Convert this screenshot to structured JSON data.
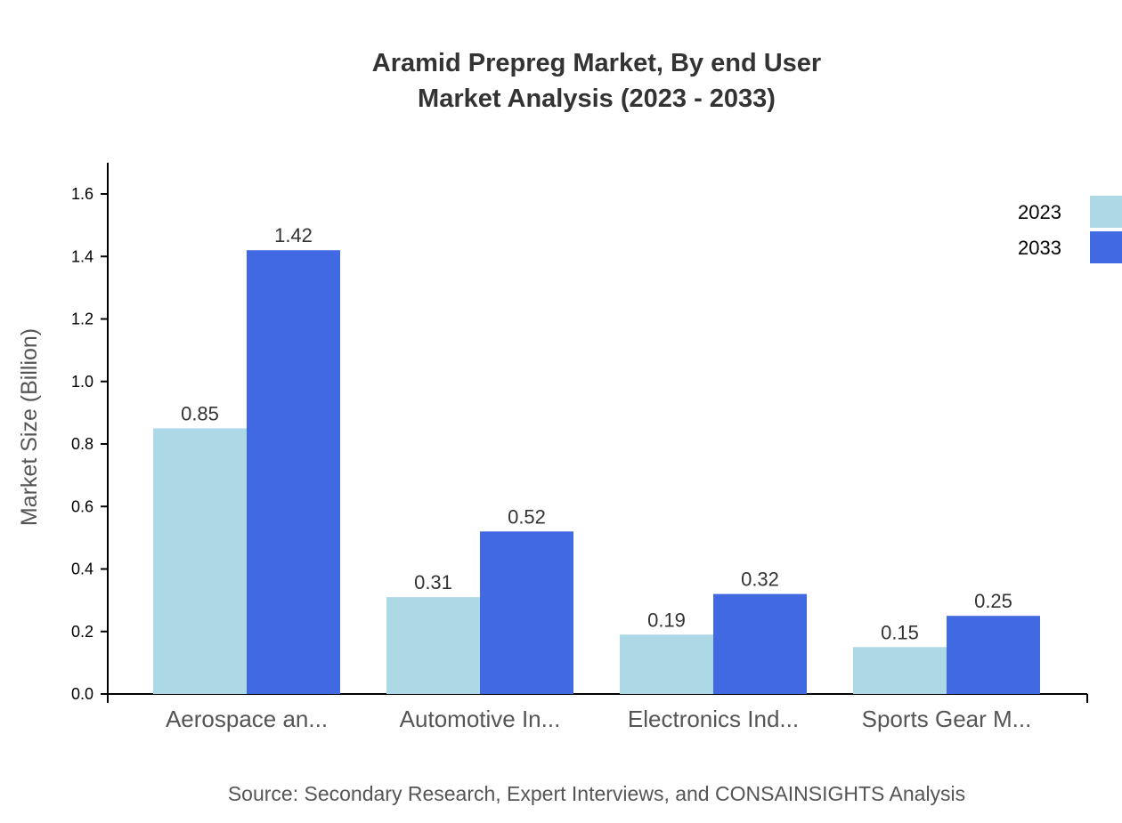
{
  "chart_data": {
    "type": "bar",
    "title": [
      "Aramid Prepreg Market, By end User",
      "Market Analysis (2023 - 2033)"
    ],
    "ylabel": "Market Size (Billion)",
    "xlabel": "",
    "categories": [
      "Aerospace an...",
      "Automotive In...",
      "Electronics Ind...",
      "Sports Gear M..."
    ],
    "series": [
      {
        "name": "2023",
        "color": "#add8e6",
        "values": [
          0.85,
          0.31,
          0.19,
          0.15
        ],
        "labels": [
          "0.85",
          "0.31",
          "0.19",
          "0.15"
        ]
      },
      {
        "name": "2033",
        "color": "#4169e1",
        "values": [
          1.42,
          0.52,
          0.32,
          0.25
        ],
        "labels": [
          "1.42",
          "0.52",
          "0.32",
          "0.25"
        ]
      }
    ],
    "ylim": [
      0,
      1.7
    ],
    "yticks": [
      "0.0",
      "0.2",
      "0.4",
      "0.6",
      "0.8",
      "1.0",
      "1.2",
      "1.4",
      "1.6"
    ],
    "grid": false,
    "legend_position": "top-right",
    "source": "Source: Secondary Research, Expert Interviews, and CONSAINSIGHTS Analysis"
  }
}
